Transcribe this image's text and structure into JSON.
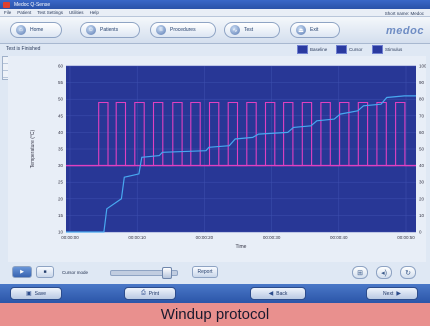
{
  "window": {
    "title": "Medoc Q-Sense"
  },
  "menu": {
    "items": [
      "File",
      "Patient",
      "Test Settings",
      "Utilities",
      "Help"
    ],
    "right_text": "Short name: Medoc"
  },
  "toolbar": {
    "tabs": [
      {
        "label": "Home",
        "icon": "home-icon"
      },
      {
        "label": "Patients",
        "icon": "user-icon"
      },
      {
        "label": "Procedures",
        "icon": "list-icon"
      },
      {
        "label": "Test",
        "icon": "chart-icon"
      },
      {
        "label": "Exit",
        "icon": "exit-icon"
      }
    ],
    "logo": "medoc"
  },
  "panel": {
    "title": "Test is Finished",
    "legend": [
      "Baseline",
      "Cursor",
      "Stimulus"
    ]
  },
  "chart_data": {
    "type": "line",
    "xlabel": "Time",
    "ylabel": "Temperature (°C)",
    "y_left_ticks": [
      "60",
      "55",
      "50",
      "45",
      "40",
      "35",
      "30",
      "25",
      "20",
      "15",
      "10"
    ],
    "y_right_ticks": [
      "100",
      "90",
      "80",
      "70",
      "60",
      "50",
      "40",
      "30",
      "20",
      "10",
      "0"
    ],
    "x_ticks": [
      "00:00:00",
      "00:00:10",
      "00:00:20",
      "00:00:30",
      "00:00:40",
      "00:00:50"
    ],
    "ylim_left": [
      10,
      60
    ],
    "ylim_right": [
      0,
      100
    ],
    "xlim": [
      0,
      60
    ],
    "baseline_level": 30,
    "series": [
      {
        "color": "#e040c0",
        "pulse_low": 30,
        "pulse_high": 49,
        "pulse_starts": [
          5.6,
          8.6,
          11.8,
          15.0,
          18.3,
          21.4,
          24.6,
          27.8,
          31.0,
          34.2,
          37.3,
          40.5,
          43.7,
          46.9,
          50.1,
          53.3,
          56.5
        ],
        "pulse_width": 1.6
      },
      {
        "color": "#48a8f0",
        "x": [
          0,
          6.5,
          7,
          9.5,
          10,
          12.5,
          13,
          16,
          16.5,
          24,
          24.5,
          28,
          29,
          32,
          33,
          38,
          39,
          42,
          43,
          46,
          47,
          50,
          51,
          54,
          55,
          58,
          60
        ],
        "y": [
          0,
          0,
          14,
          20,
          33,
          35,
          45,
          46,
          48,
          49,
          51,
          52,
          56,
          57,
          59,
          60,
          63,
          64,
          67,
          68,
          71,
          73,
          76,
          77,
          81,
          82,
          82
        ]
      }
    ]
  },
  "controls": {
    "play_icon": "play-icon",
    "slider_label": "Cursor mode",
    "extra_label": "Report",
    "buttons": [
      "zoom-icon",
      "sound-icon",
      "refresh-icon"
    ]
  },
  "nav": {
    "save": "Save",
    "print": "Print",
    "back": "Back",
    "next": "Next"
  },
  "caption": "Windup protocol"
}
